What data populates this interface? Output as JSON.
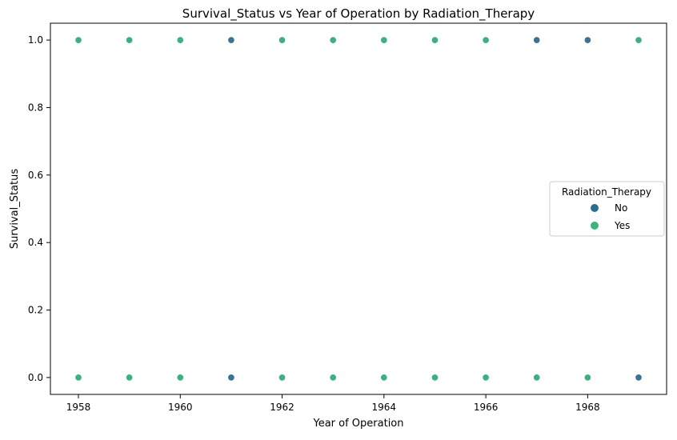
{
  "chart_data": {
    "type": "scatter",
    "title": "Survival_Status vs Year of Operation by Radiation_Therapy",
    "xlabel": "Year of Operation",
    "ylabel": "Survival_Status",
    "xlim": [
      1957.45,
      1969.55
    ],
    "ylim": [
      -0.05,
      1.05
    ],
    "x_ticks": [
      1958,
      1960,
      1962,
      1964,
      1966,
      1968
    ],
    "x_tick_labels": [
      "1958",
      "1960",
      "1962",
      "1964",
      "1966",
      "1968"
    ],
    "y_ticks": [
      0.0,
      0.2,
      0.4,
      0.6,
      0.8,
      1.0
    ],
    "y_tick_labels": [
      "0.0",
      "0.2",
      "0.4",
      "0.6",
      "0.8",
      "1.0"
    ],
    "grid": false,
    "legend": {
      "title": "Radiation_Therapy",
      "placement": "center-right"
    },
    "series": [
      {
        "name": "No",
        "color": "#2c6e8f",
        "points": [
          [
            1958,
            0
          ],
          [
            1958,
            1
          ],
          [
            1959,
            0
          ],
          [
            1959,
            1
          ],
          [
            1960,
            0
          ],
          [
            1960,
            1
          ],
          [
            1961,
            0
          ],
          [
            1961,
            1
          ],
          [
            1962,
            0
          ],
          [
            1962,
            1
          ],
          [
            1963,
            0
          ],
          [
            1963,
            1
          ],
          [
            1964,
            0
          ],
          [
            1964,
            1
          ],
          [
            1965,
            0
          ],
          [
            1965,
            1
          ],
          [
            1966,
            0
          ],
          [
            1966,
            1
          ],
          [
            1967,
            0
          ],
          [
            1967,
            1
          ],
          [
            1968,
            0
          ],
          [
            1968,
            1
          ],
          [
            1969,
            0
          ],
          [
            1969,
            1
          ]
        ]
      },
      {
        "name": "Yes",
        "color": "#3bb57b",
        "points": [
          [
            1958,
            0
          ],
          [
            1958,
            1
          ],
          [
            1959,
            0
          ],
          [
            1959,
            1
          ],
          [
            1960,
            0
          ],
          [
            1960,
            1
          ],
          [
            1962,
            0
          ],
          [
            1962,
            1
          ],
          [
            1963,
            0
          ],
          [
            1963,
            1
          ],
          [
            1964,
            0
          ],
          [
            1964,
            1
          ],
          [
            1965,
            0
          ],
          [
            1965,
            1
          ],
          [
            1966,
            0
          ],
          [
            1966,
            1
          ],
          [
            1967,
            0
          ],
          [
            1968,
            0
          ],
          [
            1969,
            1
          ]
        ]
      }
    ]
  }
}
